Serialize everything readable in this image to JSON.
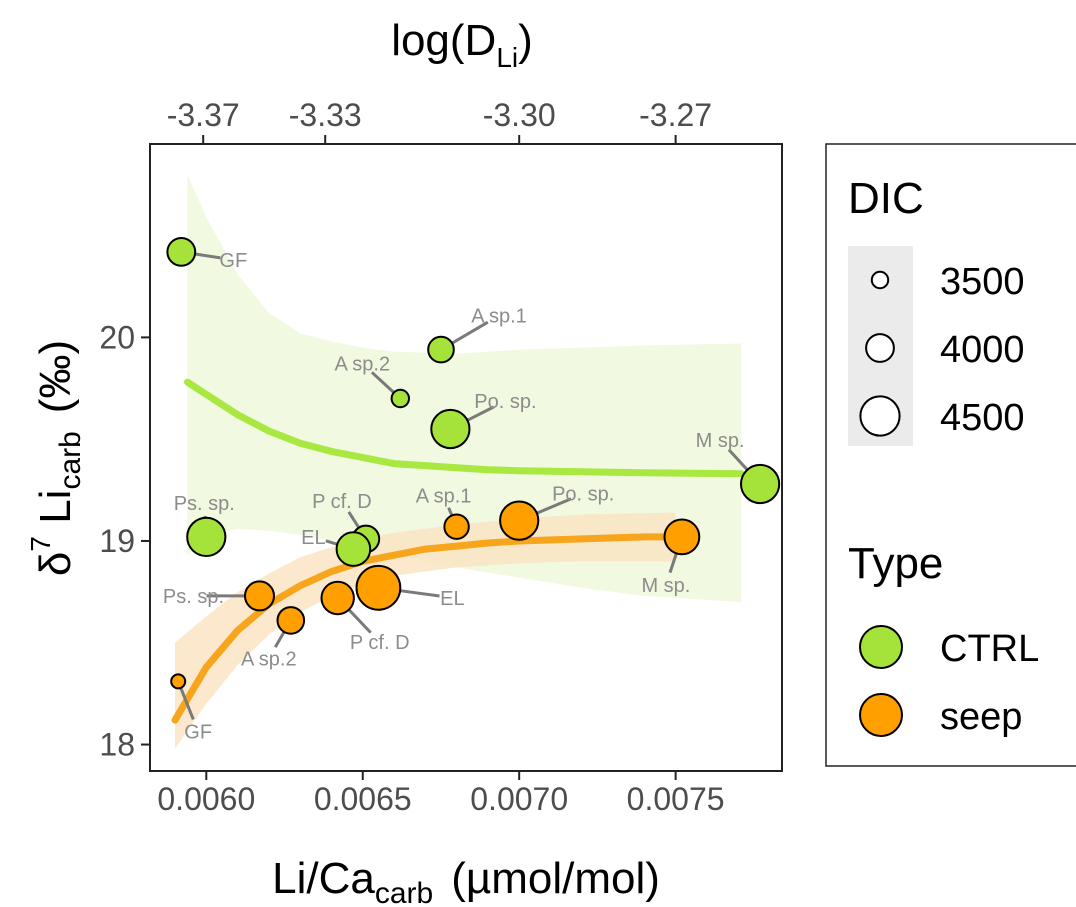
{
  "chart_data": {
    "type": "scatter",
    "top_axis_title": "log(D",
    "top_axis_title_sub": "Li",
    "top_axis_title_end": ")",
    "top_ticks": [
      "-3.37",
      "-3.33",
      "-3.30",
      "-3.27"
    ],
    "top_tick_positions_x": [
      0.00599,
      0.00638,
      0.007,
      0.0075
    ],
    "x_axis": {
      "ticks": [
        "0.0060",
        "0.0065",
        "0.0070",
        "0.0075"
      ],
      "tick_values": [
        0.006,
        0.0065,
        0.007,
        0.0075
      ],
      "xlim": [
        0.00582,
        0.00784
      ]
    },
    "xlabel_main": "Li/Ca",
    "xlabel_sub": "carb",
    "xlabel_unit": "(µmol/mol)",
    "y_axis": {
      "ticks": [
        "18",
        "19",
        "20"
      ],
      "tick_values": [
        18,
        19,
        20
      ],
      "ylim": [
        17.87,
        20.95
      ]
    },
    "ylabel_delta": "δ",
    "ylabel_sup": "7",
    "ylabel_main": " Li",
    "ylabel_sub": "carb",
    "ylabel_unit": "(‰)",
    "grid": false,
    "legend": {
      "size_title": "DIC",
      "sizes": [
        {
          "label": "3500",
          "value": 3500
        },
        {
          "label": "4000",
          "value": 4000
        },
        {
          "label": "4500",
          "value": 4500
        }
      ],
      "type_title": "Type",
      "types": [
        {
          "label": "CTRL",
          "color": "#a6e33a"
        },
        {
          "label": "seep",
          "color": "#ffa000"
        }
      ],
      "placement": "right"
    },
    "series": [
      {
        "name": "CTRL",
        "color": "#a6e33a",
        "line_color": "#a8e840",
        "band_color": "#eef8da",
        "fit": [
          [
            0.00594,
            19.78
          ],
          [
            0.006,
            19.72
          ],
          [
            0.0061,
            19.62
          ],
          [
            0.0062,
            19.54
          ],
          [
            0.0063,
            19.48
          ],
          [
            0.0064,
            19.44
          ],
          [
            0.0065,
            19.41
          ],
          [
            0.0066,
            19.38
          ],
          [
            0.0067,
            19.37
          ],
          [
            0.0068,
            19.36
          ],
          [
            0.0069,
            19.35
          ],
          [
            0.007,
            19.345
          ],
          [
            0.0072,
            19.34
          ],
          [
            0.0074,
            19.335
          ],
          [
            0.00771,
            19.33
          ]
        ],
        "band_upper": [
          [
            0.00594,
            20.8
          ],
          [
            0.006,
            20.59
          ],
          [
            0.0061,
            20.31
          ],
          [
            0.0062,
            20.12
          ],
          [
            0.0063,
            20.02
          ],
          [
            0.0064,
            19.98
          ],
          [
            0.0065,
            19.95
          ],
          [
            0.0066,
            19.93
          ],
          [
            0.0068,
            19.92
          ],
          [
            0.007,
            19.94
          ],
          [
            0.0072,
            19.95
          ],
          [
            0.0074,
            19.96
          ],
          [
            0.00771,
            19.97
          ]
        ],
        "band_lower": [
          [
            0.00594,
            18.93
          ],
          [
            0.006,
            19.02
          ],
          [
            0.0061,
            19.06
          ],
          [
            0.0062,
            19.05
          ],
          [
            0.0063,
            19.03
          ],
          [
            0.0064,
            19.0
          ],
          [
            0.0065,
            18.97
          ],
          [
            0.0066,
            18.93
          ],
          [
            0.0068,
            18.87
          ],
          [
            0.007,
            18.82
          ],
          [
            0.0072,
            18.77
          ],
          [
            0.0074,
            18.73
          ],
          [
            0.00771,
            18.7
          ]
        ],
        "points": [
          {
            "label": "GF",
            "x": 0.00592,
            "y": 20.42,
            "dic": 4000
          },
          {
            "label": "A sp.1",
            "x": 0.00675,
            "y": 19.94,
            "dic": 3900
          },
          {
            "label": "A sp.2",
            "x": 0.00662,
            "y": 19.7,
            "dic": 3550
          },
          {
            "label": "Po. sp.",
            "x": 0.00678,
            "y": 19.55,
            "dic": 4450
          },
          {
            "label": "M sp.",
            "x": 0.00777,
            "y": 19.28,
            "dic": 4450
          },
          {
            "label": "Ps. sp.",
            "x": 0.006,
            "y": 19.02,
            "dic": 4450
          },
          {
            "label": "P cf. D",
            "x": 0.00651,
            "y": 19.01,
            "dic": 3950
          },
          {
            "label": "EL",
            "x": 0.00647,
            "y": 18.96,
            "dic": 4250
          }
        ]
      },
      {
        "name": "seep",
        "color": "#ffa000",
        "line_color": "#f7a51c",
        "band_color": "#fbe3c0",
        "fit": [
          [
            0.0059,
            18.12
          ],
          [
            0.006,
            18.38
          ],
          [
            0.0061,
            18.56
          ],
          [
            0.0062,
            18.69
          ],
          [
            0.0063,
            18.78
          ],
          [
            0.0064,
            18.85
          ],
          [
            0.0065,
            18.9
          ],
          [
            0.0066,
            18.93
          ],
          [
            0.0067,
            18.96
          ],
          [
            0.0068,
            18.975
          ],
          [
            0.0069,
            18.99
          ],
          [
            0.007,
            19.0
          ],
          [
            0.0072,
            19.01
          ],
          [
            0.0074,
            19.02
          ],
          [
            0.0075,
            19.02
          ]
        ],
        "band_upper": [
          [
            0.0059,
            18.5
          ],
          [
            0.006,
            18.63
          ],
          [
            0.0061,
            18.75
          ],
          [
            0.0062,
            18.84
          ],
          [
            0.0063,
            18.92
          ],
          [
            0.0064,
            18.97
          ],
          [
            0.0065,
            19.01
          ],
          [
            0.0066,
            19.04
          ],
          [
            0.0068,
            19.08
          ],
          [
            0.007,
            19.11
          ],
          [
            0.0072,
            19.13
          ],
          [
            0.0075,
            19.14
          ]
        ],
        "band_lower": [
          [
            0.0059,
            17.98
          ],
          [
            0.006,
            18.2
          ],
          [
            0.0061,
            18.39
          ],
          [
            0.0062,
            18.54
          ],
          [
            0.0063,
            18.65
          ],
          [
            0.0064,
            18.73
          ],
          [
            0.0065,
            18.79
          ],
          [
            0.0066,
            18.83
          ],
          [
            0.0068,
            18.87
          ],
          [
            0.007,
            18.89
          ],
          [
            0.0072,
            18.9
          ],
          [
            0.0075,
            18.9
          ]
        ],
        "points": [
          {
            "label": "GF",
            "x": 0.00591,
            "y": 18.31,
            "dic": 3400
          },
          {
            "label": "Ps. sp.",
            "x": 0.00617,
            "y": 18.73,
            "dic": 4050
          },
          {
            "label": "A sp.2",
            "x": 0.00627,
            "y": 18.61,
            "dic": 3950
          },
          {
            "label": "P cf. D",
            "x": 0.00642,
            "y": 18.72,
            "dic": 4200
          },
          {
            "label": "EL",
            "x": 0.00655,
            "y": 18.77,
            "dic": 4700
          },
          {
            "label": "A sp.1",
            "x": 0.0068,
            "y": 19.07,
            "dic": 3850
          },
          {
            "label": "Po. sp.",
            "x": 0.007,
            "y": 19.1,
            "dic": 4450
          },
          {
            "label": "M sp.",
            "x": 0.00752,
            "y": 19.02,
            "dic": 4300
          }
        ]
      }
    ]
  }
}
